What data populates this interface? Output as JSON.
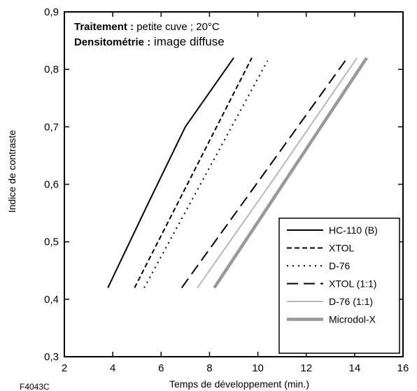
{
  "chart_data": {
    "type": "line",
    "xlabel": "Temps de développement (min.)",
    "ylabel": "Indice de contraste",
    "xlim": [
      2,
      16
    ],
    "ylim": [
      0.3,
      0.9
    ],
    "x_ticks": [
      "2",
      "4",
      "6",
      "8",
      "10",
      "12",
      "14",
      "16"
    ],
    "y_ticks": [
      "0,3",
      "0,4",
      "0,5",
      "0,6",
      "0,7",
      "0,8",
      "0,9"
    ],
    "notes": [
      {
        "bold": "Traitement :",
        "text": " petite cuve ; 20°C"
      },
      {
        "bold": "Densitométrie :",
        "text": " image diffuse"
      }
    ],
    "legend_position": "bottom-right",
    "series": [
      {
        "name": "HC-110 (B)",
        "style": "solid",
        "color": "#000000",
        "points": [
          [
            3.8,
            0.42
          ],
          [
            5.5,
            0.57
          ],
          [
            7.0,
            0.7
          ],
          [
            9.0,
            0.82
          ]
        ]
      },
      {
        "name": "XTOL",
        "style": "dash-short",
        "color": "#000000",
        "points": [
          [
            4.9,
            0.42
          ],
          [
            9.75,
            0.82
          ]
        ]
      },
      {
        "name": "D-76",
        "style": "dotted",
        "color": "#000000",
        "points": [
          [
            5.3,
            0.42
          ],
          [
            10.4,
            0.815
          ]
        ]
      },
      {
        "name": "XTOL (1:1)",
        "style": "dash-long",
        "color": "#000000",
        "points": [
          [
            6.85,
            0.42
          ],
          [
            13.7,
            0.82
          ]
        ]
      },
      {
        "name": "D-76 (1:1)",
        "style": "solid-light",
        "color": "#b8b8b8",
        "points": [
          [
            7.5,
            0.42
          ],
          [
            10.5,
            0.6
          ],
          [
            14.1,
            0.82
          ]
        ]
      },
      {
        "name": "Microdol-X",
        "style": "solid-thick",
        "color": "#999999",
        "points": [
          [
            8.2,
            0.42
          ],
          [
            14.5,
            0.82
          ]
        ]
      }
    ]
  },
  "figure_code": "F4043C"
}
